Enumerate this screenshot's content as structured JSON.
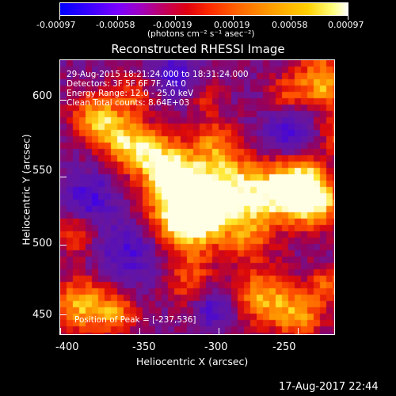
{
  "colorbar": {
    "ticks": [
      "-0.00097",
      "-0.00058",
      "-0.00019",
      "0.00019",
      "0.00058",
      "0.00097"
    ],
    "units": "(photons cm⁻² s⁻¹ asec⁻²)"
  },
  "plot": {
    "title": "Reconstructed RHESSI Image",
    "info": [
      "29-Aug-2015 18:21:24.000 to 18:31:24.000",
      "Detectors: 3F 5F 6F 7F, Att 0",
      "Energy Range: 12.0 - 25.0 keV",
      "Clean    Total counts: 8.64E+03"
    ],
    "peak": "Position of Peak = [-237,536]",
    "xlabel": "Heliocentric X (arcsec)",
    "ylabel": "Heliocentric Y (arcsec)",
    "xticks": [
      "-400",
      "-350",
      "-300",
      "-250"
    ],
    "yticks": [
      "600",
      "550",
      "500",
      "450"
    ]
  },
  "footer": {
    "timestamp": "17-Aug-2017 22:44"
  },
  "chart_data": {
    "type": "heatmap",
    "title": "Reconstructed RHESSI Image",
    "xlabel": "Heliocentric X (arcsec)",
    "ylabel": "Heliocentric Y (arcsec)",
    "xlim": [
      -410,
      -220
    ],
    "ylim": [
      435,
      625
    ],
    "zlim": [
      -0.00097,
      0.00097
    ],
    "peak": [
      -237,
      536
    ]
  }
}
